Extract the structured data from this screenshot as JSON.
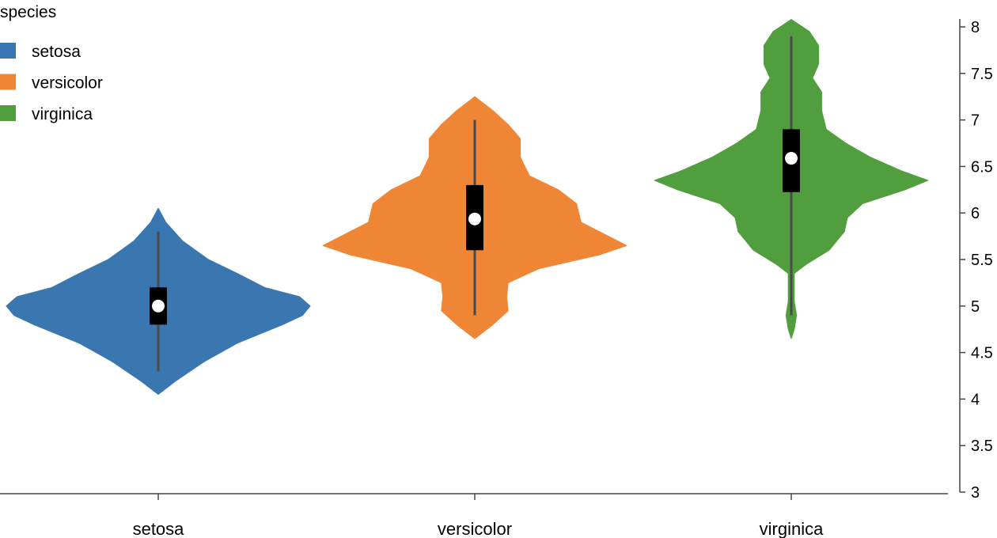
{
  "chart_data": {
    "type": "violin",
    "title": "",
    "xlabel": "",
    "ylabel": "",
    "ylim": [
      3,
      8
    ],
    "yticks": [
      "3",
      "3.5",
      "4",
      "4.5",
      "5",
      "5.5",
      "6",
      "6.5",
      "7",
      "7.5",
      "8"
    ],
    "categories": [
      "setosa",
      "versicolor",
      "virginica"
    ],
    "legend": {
      "title": "species",
      "placement": "top-left",
      "entries": [
        {
          "label": "setosa",
          "color": "#3a76af"
        },
        {
          "label": "versicolor",
          "color": "#ef8636"
        },
        {
          "label": "virginica",
          "color": "#519e3e"
        }
      ]
    },
    "series": [
      {
        "category": "setosa",
        "color": "#3a76af",
        "min": 4.3,
        "q1": 4.8,
        "median": 5.0,
        "q3": 5.2,
        "max": 5.8,
        "density": [
          [
            4.05,
            0
          ],
          [
            4.2,
            0.12
          ],
          [
            4.4,
            0.3
          ],
          [
            4.6,
            0.52
          ],
          [
            4.8,
            0.82
          ],
          [
            4.9,
            0.95
          ],
          [
            5.0,
            1.0
          ],
          [
            5.1,
            0.93
          ],
          [
            5.2,
            0.7
          ],
          [
            5.35,
            0.52
          ],
          [
            5.5,
            0.33
          ],
          [
            5.7,
            0.16
          ],
          [
            5.9,
            0.05
          ],
          [
            6.05,
            0
          ]
        ]
      },
      {
        "category": "versicolor",
        "color": "#ef8636",
        "min": 4.9,
        "q1": 5.6,
        "median": 5.936,
        "q3": 6.3,
        "max": 7.0,
        "density": [
          [
            4.65,
            0
          ],
          [
            4.8,
            0.12
          ],
          [
            4.95,
            0.22
          ],
          [
            5.1,
            0.21
          ],
          [
            5.25,
            0.22
          ],
          [
            5.4,
            0.42
          ],
          [
            5.55,
            0.82
          ],
          [
            5.65,
            1.0
          ],
          [
            5.75,
            0.88
          ],
          [
            5.9,
            0.7
          ],
          [
            6.1,
            0.67
          ],
          [
            6.25,
            0.55
          ],
          [
            6.4,
            0.36
          ],
          [
            6.6,
            0.3
          ],
          [
            6.8,
            0.3
          ],
          [
            6.95,
            0.22
          ],
          [
            7.1,
            0.12
          ],
          [
            7.25,
            0
          ]
        ]
      },
      {
        "category": "virginica",
        "color": "#519e3e",
        "min": 4.9,
        "q1": 6.225,
        "median": 6.588,
        "q3": 6.9,
        "max": 7.9,
        "density": [
          [
            4.65,
            0
          ],
          [
            4.75,
            0.02
          ],
          [
            4.9,
            0.035
          ],
          [
            5.05,
            0.02
          ],
          [
            5.35,
            0.02
          ],
          [
            5.45,
            0.1
          ],
          [
            5.6,
            0.25
          ],
          [
            5.8,
            0.35
          ],
          [
            5.95,
            0.37
          ],
          [
            6.1,
            0.47
          ],
          [
            6.25,
            0.75
          ],
          [
            6.35,
            0.9
          ],
          [
            6.45,
            0.73
          ],
          [
            6.6,
            0.52
          ],
          [
            6.75,
            0.36
          ],
          [
            6.9,
            0.23
          ],
          [
            7.1,
            0.2
          ],
          [
            7.3,
            0.2
          ],
          [
            7.45,
            0.14
          ],
          [
            7.6,
            0.18
          ],
          [
            7.8,
            0.18
          ],
          [
            7.95,
            0.12
          ],
          [
            8.08,
            0
          ]
        ]
      }
    ]
  }
}
